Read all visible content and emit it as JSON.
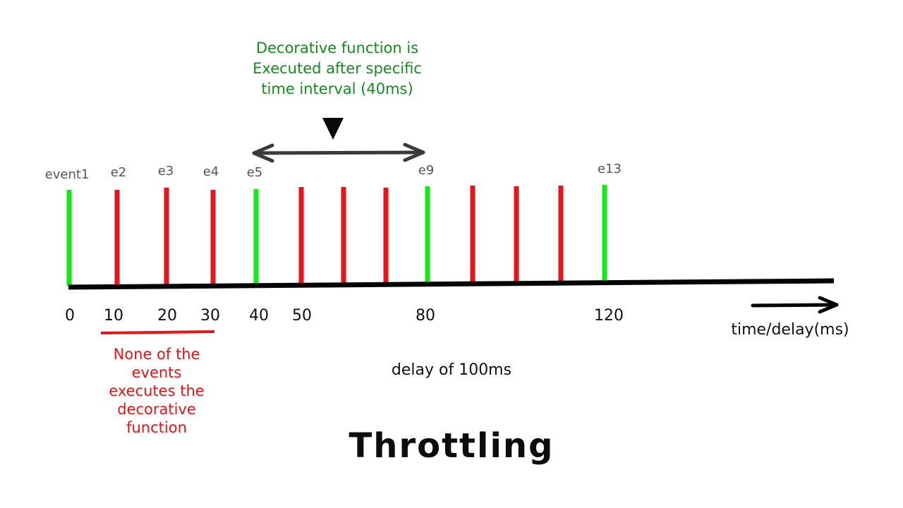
{
  "title": "Throttling",
  "colors": {
    "executed": "#16e81a",
    "skipped": "#e5151b",
    "axis": "#050505",
    "interval_arrow": "#3a3a3a",
    "event_label": "#555555",
    "green_text": "#168a1f",
    "red_text": "#e0161b"
  },
  "events": [
    {
      "label": "event1",
      "executed": true
    },
    {
      "label": "e2",
      "executed": false
    },
    {
      "label": "e3",
      "executed": false
    },
    {
      "label": "e4",
      "executed": false
    },
    {
      "label": "e5",
      "executed": true
    },
    {
      "label": "",
      "executed": false
    },
    {
      "label": "",
      "executed": false
    },
    {
      "label": "",
      "executed": false
    },
    {
      "label": "e9",
      "executed": true
    },
    {
      "label": "",
      "executed": false
    },
    {
      "label": "",
      "executed": false
    },
    {
      "label": "",
      "executed": false
    },
    {
      "label": "e13",
      "executed": true
    }
  ],
  "ticks": [
    "0",
    "10",
    "20",
    "30",
    "40",
    "50",
    "80",
    "120"
  ],
  "axis_unit_label": "time/delay(ms)",
  "interval_annotation": "Decorative function is\nExecuted after specific\ntime interval (40ms)",
  "skipped_annotation": "None of the\nevents\nexecutes the\ndecorative\nfunction",
  "delay_label": "delay of 100ms",
  "icons": {
    "interval": "double-headed-arrow-icon",
    "pointer": "triangle-down-icon",
    "axis_direction": "arrow-right-icon"
  }
}
